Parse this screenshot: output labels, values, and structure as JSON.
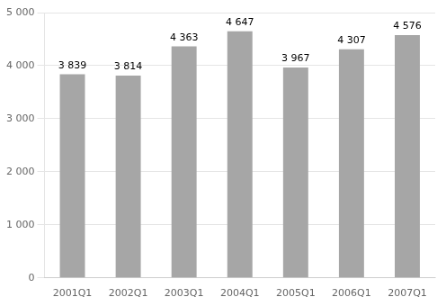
{
  "chart_data": {
    "type": "bar",
    "categories": [
      "2001Q1",
      "2002Q1",
      "2003Q1",
      "2004Q1",
      "2005Q1",
      "2006Q1",
      "2007Q1"
    ],
    "values": [
      3839,
      3814,
      4363,
      4647,
      3967,
      4307,
      4576
    ],
    "value_labels": [
      "3 839",
      "3 814",
      "4 363",
      "4 647",
      "3 967",
      "4 307",
      "4 576"
    ],
    "color": "#a6a6a6",
    "ylim": [
      0,
      5000
    ],
    "yticks": [
      0,
      {
        "value": 1000,
        "label": "1 000"
      },
      {
        "value": 2000,
        "label": "2 000"
      },
      {
        "value": 3000,
        "label": "3 000"
      },
      {
        "value": 4000,
        "label": "4 000"
      },
      {
        "value": 5000,
        "label": "5 000"
      }
    ],
    "grid": true,
    "data_labels": true
  }
}
